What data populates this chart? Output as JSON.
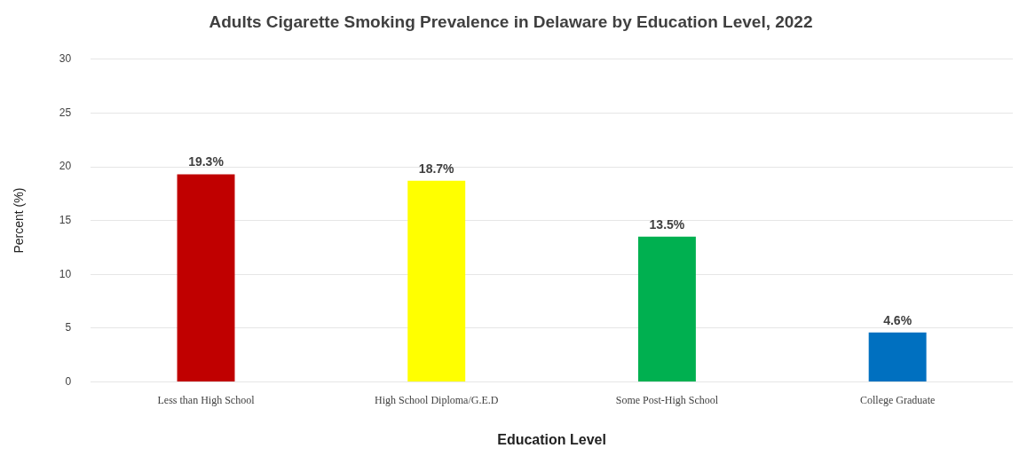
{
  "chart_data": {
    "type": "bar",
    "title": "Adults Cigarette Smoking Prevalence in Delaware by Education Level, 2022",
    "xlabel": "Education Level",
    "ylabel": "Percent (%)",
    "categories": [
      "Less than High School",
      "High School Diploma/G.E.D",
      "Some Post-High School",
      "College Graduate"
    ],
    "values": [
      19.3,
      18.7,
      13.5,
      4.6
    ],
    "colors": [
      "#c00000",
      "#ffff00",
      "#00b050",
      "#0070c0"
    ],
    "value_labels": [
      "19.3%",
      "18.7%",
      "13.5%",
      "4.6%"
    ],
    "ylim": [
      0,
      30
    ],
    "yticks": [
      0,
      5,
      10,
      15,
      20,
      25,
      30
    ],
    "grid": "y"
  }
}
